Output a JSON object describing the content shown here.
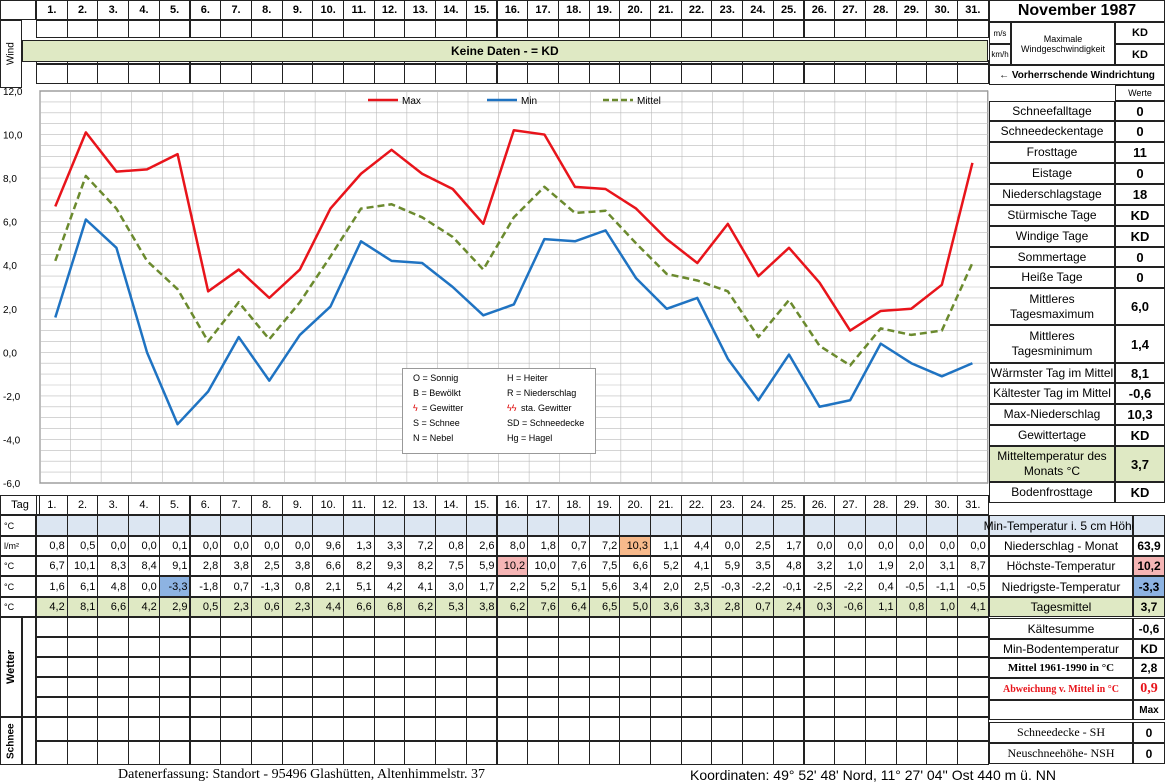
{
  "header": {
    "days": [
      "1.",
      "2.",
      "3.",
      "4.",
      "5.",
      "6.",
      "7.",
      "8.",
      "9.",
      "10.",
      "11.",
      "12.",
      "13.",
      "14.",
      "15.",
      "16.",
      "17.",
      "18.",
      "19.",
      "20.",
      "21.",
      "22.",
      "23.",
      "24.",
      "25.",
      "26.",
      "27.",
      "28.",
      "29.",
      "30.",
      "31."
    ],
    "title": "November 1987"
  },
  "wind": {
    "side_label": "Wind",
    "banner": "Keine Daten -  = KD",
    "unit_ms": "m/s",
    "unit_kmh": "km/h",
    "max_label": "Maximale Windgeschwindigkeit",
    "val_ms": "KD",
    "val_kmh": "KD",
    "direction_label": "← Vorherrschende Windrichtung"
  },
  "stats": {
    "header": "Werte",
    "rows": [
      {
        "label": "Schneefalltage",
        "value": "0"
      },
      {
        "label": "Schneedeckentage",
        "value": "0"
      },
      {
        "label": "Frosttage",
        "value": "11"
      },
      {
        "label": "Eistage",
        "value": "0"
      },
      {
        "label": "Niederschlagstage",
        "value": "18"
      },
      {
        "label": "Stürmische Tage",
        "value": "KD"
      },
      {
        "label": "Windige Tage",
        "value": "KD"
      },
      {
        "label": "Sommertage",
        "value": "0"
      },
      {
        "label": "Heiße Tage",
        "value": "0"
      },
      {
        "label": "Mittleres Tagesmaximum",
        "value": "6,0"
      },
      {
        "label": "Mittleres Tagesminimum",
        "value": "1,4"
      },
      {
        "label": "Wärmster Tag im Mittel",
        "value": "8,1"
      },
      {
        "label": "Kältester Tag im Mittel",
        "value": "-0,6"
      },
      {
        "label": "Max-Niederschlag",
        "value": "10,3"
      },
      {
        "label": "Gewittertage",
        "value": "KD"
      },
      {
        "label": "Mitteltemperatur des Monats °C",
        "value": "3,7"
      },
      {
        "label": "Bodenfrosttage",
        "value": "KD"
      }
    ]
  },
  "legend_box": {
    "items": [
      "O = Sonnig",
      "H = Heiter",
      "B = Bewölkt",
      "R = Niederschlag",
      "= Gewitter",
      "sta. Gewitter",
      "S = Schnee",
      "SD = Schneedecke",
      "N = Nebel",
      "Hg = Hagel"
    ]
  },
  "table": {
    "tag_label": "Tag",
    "rows": [
      {
        "unit": "°C",
        "label": "Min-Temperatur i. 5 cm Höhe",
        "total": "",
        "values": [
          "",
          "",
          "",
          "",
          "",
          "",
          "",
          "",
          "",
          "",
          "",
          "",
          "",
          "",
          "",
          "",
          "",
          "",
          "",
          "",
          "",
          "",
          "",
          "",
          "",
          "",
          "",
          "",
          "",
          "",
          ""
        ]
      },
      {
        "unit": "l/m²",
        "label": "Niederschlag - Monat",
        "total": "63,9",
        "values": [
          "0,8",
          "0,5",
          "0,0",
          "0,0",
          "0,1",
          "0,0",
          "0,0",
          "0,0",
          "0,0",
          "9,6",
          "1,3",
          "3,3",
          "7,2",
          "0,8",
          "2,6",
          "8,0",
          "1,8",
          "0,7",
          "7,2",
          "10,3",
          "1,1",
          "4,4",
          "0,0",
          "2,5",
          "1,7",
          "0,0",
          "0,0",
          "0,0",
          "0,0",
          "0,0",
          "0,0"
        ]
      },
      {
        "unit": "°C",
        "label": "Höchste-Temperatur",
        "total": "10,2",
        "values": [
          "6,7",
          "10,1",
          "8,3",
          "8,4",
          "9,1",
          "2,8",
          "3,8",
          "2,5",
          "3,8",
          "6,6",
          "8,2",
          "9,3",
          "8,2",
          "7,5",
          "5,9",
          "10,2",
          "10,0",
          "7,6",
          "7,5",
          "6,6",
          "5,2",
          "4,1",
          "5,9",
          "3,5",
          "4,8",
          "3,2",
          "1,0",
          "1,9",
          "2,0",
          "3,1",
          "8,7"
        ]
      },
      {
        "unit": "°C",
        "label": "Niedrigste-Temperatur",
        "total": "-3,3",
        "values": [
          "1,6",
          "6,1",
          "4,8",
          "0,0",
          "-3,3",
          "-1,8",
          "0,7",
          "-1,3",
          "0,8",
          "2,1",
          "5,1",
          "4,2",
          "4,1",
          "3,0",
          "1,7",
          "2,2",
          "5,2",
          "5,1",
          "5,6",
          "3,4",
          "2,0",
          "2,5",
          "-0,3",
          "-2,2",
          "-0,1",
          "-2,5",
          "-2,2",
          "0,4",
          "-0,5",
          "-1,1",
          "-0,5"
        ]
      },
      {
        "unit": "°C",
        "label": "Tagesmittel",
        "total": "3,7",
        "values": [
          "4,2",
          "8,1",
          "6,6",
          "4,2",
          "2,9",
          "0,5",
          "2,3",
          "0,6",
          "2,3",
          "4,4",
          "6,6",
          "6,8",
          "6,2",
          "5,3",
          "3,8",
          "6,2",
          "7,6",
          "6,4",
          "6,5",
          "5,0",
          "3,6",
          "3,3",
          "2,8",
          "0,7",
          "2,4",
          "0,3",
          "-0,6",
          "1,1",
          "0,8",
          "1,0",
          "4,1"
        ]
      }
    ]
  },
  "summary": {
    "rows": [
      {
        "label": "Kältesumme",
        "value": "-0,6"
      },
      {
        "label": "Min-Bodentemperatur",
        "value": "KD"
      },
      {
        "label": "Mittel 1961-1990 in °C",
        "value": "2,8"
      },
      {
        "label": "Abweichung v. Mittel in °C",
        "value": "0,9"
      },
      {
        "label": "",
        "value": "Max"
      }
    ],
    "wetter_label": "Wetter",
    "schnee_label": "Schnee",
    "snow_rows": [
      {
        "label": "Schneedecke -   SH",
        "value": "0"
      },
      {
        "label": "Neuschneehöhe- NSH",
        "value": "0"
      }
    ]
  },
  "footer": {
    "left": "Datenerfassung:  Standort -   95496  Glashütten, Altenhimmelstr. 37",
    "right": "Koordinaten:  49° 52' 48' Nord,   11° 27' 04'' Ost   440 m ü. NN"
  },
  "colors": {
    "max": "#e8141b",
    "min": "#1f73c2",
    "mittel": "#6b8a2e",
    "banner": "#dfe9c4",
    "min5": "#dce6f2",
    "highlight_red": "#f5b5b5",
    "highlight_orange": "#f7b98b",
    "highlight_blue": "#8db3e2"
  },
  "chart_data": {
    "type": "line",
    "categories": [
      "1.",
      "2.",
      "3.",
      "4.",
      "5.",
      "6.",
      "7.",
      "8.",
      "9.",
      "10.",
      "11.",
      "12.",
      "13.",
      "14.",
      "15.",
      "16.",
      "17.",
      "18.",
      "19.",
      "20.",
      "21.",
      "22.",
      "23.",
      "24.",
      "25.",
      "26.",
      "27.",
      "28.",
      "29.",
      "30.",
      "31."
    ],
    "ylim": [
      -6,
      12
    ],
    "yticks": [
      "12,0",
      "10,0",
      "8,0",
      "6,0",
      "4,0",
      "2,0",
      "0,0",
      "-2,0",
      "-4,0",
      "-6,0"
    ],
    "legend_position": "top",
    "grid": true,
    "series": [
      {
        "name": "Max",
        "values": [
          6.7,
          10.1,
          8.3,
          8.4,
          9.1,
          2.8,
          3.8,
          2.5,
          3.8,
          6.6,
          8.2,
          9.3,
          8.2,
          7.5,
          5.9,
          10.2,
          10.0,
          7.6,
          7.5,
          6.6,
          5.2,
          4.1,
          5.9,
          3.5,
          4.8,
          3.2,
          1.0,
          1.9,
          2.0,
          3.1,
          8.7
        ]
      },
      {
        "name": "Min",
        "values": [
          1.6,
          6.1,
          4.8,
          0.0,
          -3.3,
          -1.8,
          0.7,
          -1.3,
          0.8,
          2.1,
          5.1,
          4.2,
          4.1,
          3.0,
          1.7,
          2.2,
          5.2,
          5.1,
          5.6,
          3.4,
          2.0,
          2.5,
          -0.3,
          -2.2,
          -0.1,
          -2.5,
          -2.2,
          0.4,
          -0.5,
          -1.1,
          -0.5
        ]
      },
      {
        "name": "Mittel",
        "values": [
          4.2,
          8.1,
          6.6,
          4.2,
          2.9,
          0.5,
          2.3,
          0.6,
          2.3,
          4.4,
          6.6,
          6.8,
          6.2,
          5.3,
          3.8,
          6.2,
          7.6,
          6.4,
          6.5,
          5.0,
          3.6,
          3.3,
          2.8,
          0.7,
          2.4,
          0.3,
          -0.6,
          1.1,
          0.8,
          1.0,
          4.1
        ]
      }
    ]
  }
}
